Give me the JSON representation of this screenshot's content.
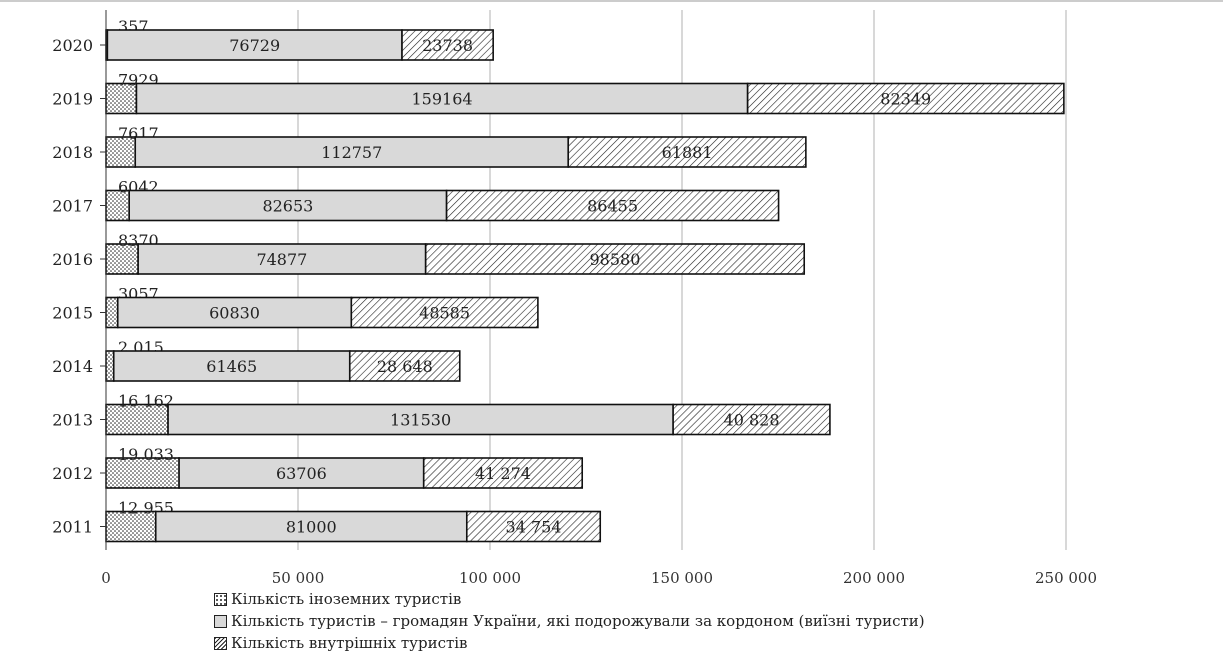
{
  "chart_data": {
    "type": "bar",
    "orientation": "horizontal",
    "stacked": true,
    "categories": [
      "2020",
      "2019",
      "2018",
      "2017",
      "2016",
      "2015",
      "2014",
      "2013",
      "2012",
      "2011"
    ],
    "series": [
      {
        "name": "Кількість іноземних туристів",
        "values": [
          357,
          7929,
          7617,
          6042,
          8370,
          3057,
          2015,
          16162,
          19033,
          12955
        ],
        "labels": [
          "357",
          "7929",
          "7617",
          "6042",
          "8370",
          "3057",
          "2 015",
          "16 162",
          "19 033",
          "12 955"
        ],
        "color": "#ffffff",
        "pattern": "dots"
      },
      {
        "name": "Кількість туристів – громадян України, які подорожували за кордоном (виїзні туристи)",
        "values": [
          76729,
          159164,
          112757,
          82653,
          74877,
          60830,
          61465,
          131530,
          63706,
          81000
        ],
        "labels": [
          "76729",
          "159164",
          "112757",
          "82653",
          "74877",
          "60830",
          "61465",
          "131530",
          "63706",
          "81000"
        ],
        "color": "#d9d9d9",
        "pattern": "solid"
      },
      {
        "name": "Кількість внутрішніх туристів",
        "values": [
          23738,
          82349,
          61881,
          86455,
          98580,
          48585,
          28648,
          40828,
          41274,
          34754
        ],
        "labels": [
          "23738",
          "82349",
          "61881",
          "86455",
          "98580",
          "48585",
          "28 648",
          "40 828",
          "41 274",
          "34 754"
        ],
        "color": "#ffffff",
        "pattern": "diagonal-hatch"
      }
    ],
    "xlim": [
      0,
      300000
    ],
    "xticks": [
      0,
      50000,
      100000,
      150000,
      200000,
      250000
    ],
    "xtick_labels": [
      "0",
      "50 000",
      "100 000",
      "150 000",
      "200 000",
      "250 000"
    ],
    "grid": "vertical",
    "legend_position": "bottom",
    "title": "",
    "xlabel": "",
    "ylabel": ""
  },
  "legend": [
    "Кількість іноземних туристів",
    "Кількість туристів – громадян України, які подорожували за кордоном (виїзні туристи)",
    "Кількість внутрішніх туристів"
  ]
}
